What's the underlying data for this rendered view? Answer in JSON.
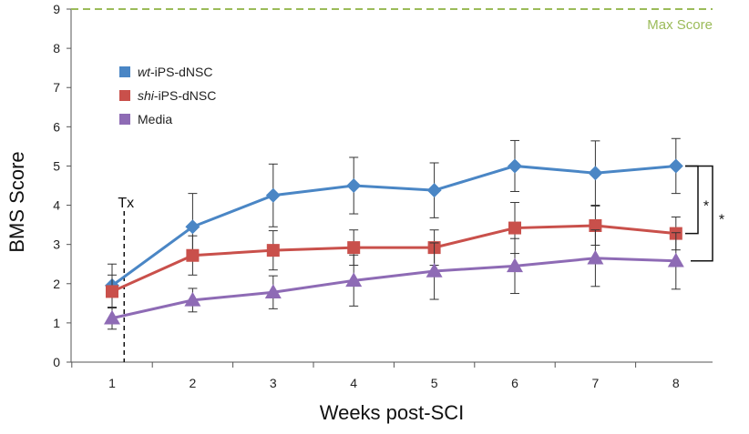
{
  "chart_data": {
    "type": "line",
    "xlabel": "Weeks post-SCI",
    "ylabel": "BMS Score",
    "x": [
      1,
      2,
      3,
      4,
      5,
      6,
      7,
      8
    ],
    "ylim": [
      0,
      9
    ],
    "yticks": [
      0,
      1,
      2,
      3,
      4,
      5,
      6,
      7,
      8,
      9
    ],
    "grid": false,
    "legend_position": "top-left",
    "series": [
      {
        "name_prefix": "wt",
        "name_suffix": "-iPS-dNSC",
        "color": "#4a86c5",
        "marker": "diamond",
        "values": [
          1.95,
          3.45,
          4.25,
          4.5,
          4.38,
          5.0,
          4.82,
          5.0
        ],
        "errors": [
          0.55,
          0.85,
          0.8,
          0.72,
          0.7,
          0.65,
          0.82,
          0.7
        ]
      },
      {
        "name_prefix": "shi",
        "name_suffix": "-iPS-dNSC",
        "color": "#c9504b",
        "marker": "square",
        "values": [
          1.8,
          2.72,
          2.85,
          2.92,
          2.92,
          3.42,
          3.48,
          3.28
        ],
        "errors": [
          0.42,
          0.5,
          0.5,
          0.45,
          0.45,
          0.65,
          0.5,
          0.42
        ]
      },
      {
        "name_prefix": "",
        "name_suffix": "Media",
        "color": "#8e6bb5",
        "marker": "triangle",
        "values": [
          1.12,
          1.58,
          1.78,
          2.08,
          2.32,
          2.45,
          2.65,
          2.58
        ],
        "errors": [
          0.28,
          0.3,
          0.42,
          0.65,
          0.72,
          0.7,
          0.72,
          0.72
        ]
      }
    ],
    "reference_line": {
      "value": 9,
      "label": "Max Score",
      "color": "#9bbb59"
    },
    "annotations": [
      {
        "text": "Tx",
        "x": 1.15
      },
      {
        "text": "*",
        "between": [
          "wt",
          "shi"
        ]
      },
      {
        "text": "*",
        "between": [
          "wt",
          "Media"
        ]
      }
    ]
  }
}
